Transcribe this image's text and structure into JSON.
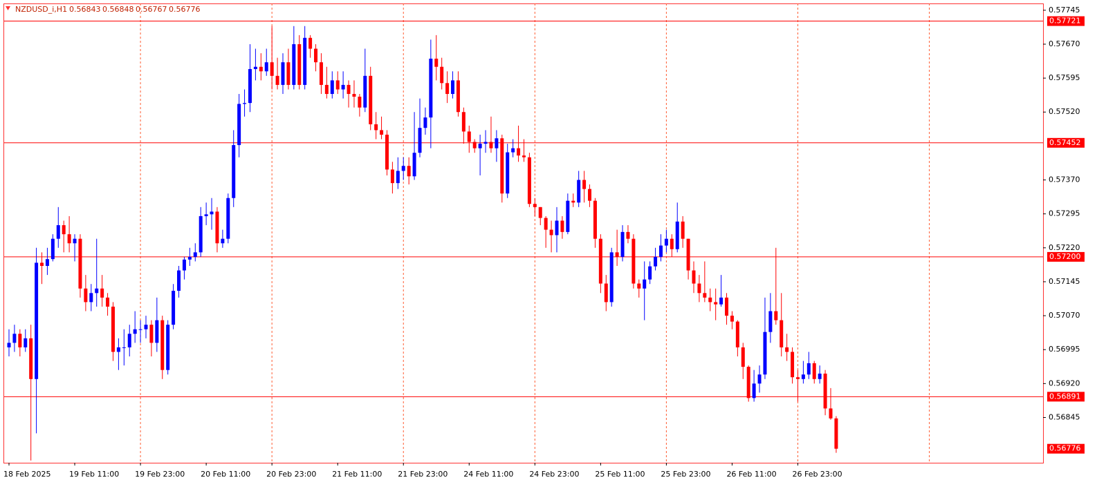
{
  "chart_data": {
    "type": "candlestick",
    "title": "NZDUSD_i,H1",
    "header_values": [
      0.56843,
      0.56848,
      0.56767,
      0.56776
    ],
    "up_color": "#0000ff",
    "down_color": "#ff0000",
    "level_color": "#ff0000",
    "grid": true,
    "ylim": [
      0.56745,
      0.5776
    ],
    "yticks": [
      0.57745,
      {
        "value": 0.5767,
        "label": "0.57670"
      },
      0.57595,
      {
        "value": 0.5752,
        "label": "0.57520"
      },
      {
        "value": 0.5737,
        "label": "0.57370"
      },
      0.57295,
      {
        "value": 0.5722,
        "label": "0.57220"
      },
      0.57145,
      {
        "value": 0.5707,
        "label": "0.57070"
      },
      0.56995,
      {
        "value": 0.5692,
        "label": "0.56920"
      },
      0.56845
    ],
    "levels": [
      0.57721,
      0.57452,
      {
        "value": 0.572,
        "label": "0.57200"
      },
      0.56891
    ],
    "categories": [
      "18 Feb 2025",
      null,
      null,
      null,
      null,
      null,
      null,
      null,
      null,
      null,
      null,
      null,
      "19 Feb 11:00",
      null,
      null,
      null,
      null,
      null,
      null,
      null,
      null,
      null,
      null,
      null,
      "19 Feb 23:00",
      null,
      null,
      null,
      null,
      null,
      null,
      null,
      null,
      null,
      null,
      null,
      "20 Feb 11:00",
      null,
      null,
      null,
      null,
      null,
      null,
      null,
      null,
      null,
      null,
      null,
      "20 Feb 23:00",
      null,
      null,
      null,
      null,
      null,
      null,
      null,
      null,
      null,
      null,
      null,
      "21 Feb 11:00",
      null,
      null,
      null,
      null,
      null,
      null,
      null,
      null,
      null,
      null,
      null,
      "21 Feb 23:00",
      null,
      null,
      null,
      null,
      null,
      null,
      null,
      null,
      null,
      null,
      null,
      "24 Feb 11:00",
      null,
      null,
      null,
      null,
      null,
      null,
      null,
      null,
      null,
      null,
      null,
      "24 Feb 23:00",
      null,
      null,
      null,
      null,
      null,
      null,
      null,
      null,
      null,
      null,
      null,
      "25 Feb 11:00",
      null,
      null,
      null,
      null,
      null,
      null,
      null,
      null,
      null,
      null,
      null,
      "25 Feb 23:00",
      null,
      null,
      null,
      null,
      null,
      null,
      null,
      null,
      null,
      null,
      null,
      "26 Feb 11:00",
      null,
      null,
      null,
      null,
      null,
      null,
      null,
      null,
      null,
      null,
      null,
      "26 Feb 23:00",
      null,
      null,
      null,
      null,
      null,
      null,
      null
    ],
    "ohlc": [
      [
        0.57,
        0.5704,
        0.5698,
        0.5701
      ],
      [
        0.5701,
        0.5705,
        0.5699,
        0.5703
      ],
      [
        0.5703,
        0.5704,
        0.5698,
        0.57
      ],
      [
        0.57,
        0.5704,
        0.5699,
        0.5702
      ],
      [
        0.5702,
        0.5705,
        0.5675,
        0.5693
      ],
      [
        0.5693,
        0.5722,
        0.5681,
        0.57187
      ],
      [
        0.57187,
        0.5721,
        0.5714,
        0.5718
      ],
      [
        0.5718,
        0.5722,
        0.5716,
        0.57195
      ],
      [
        0.57195,
        0.5725,
        0.5719,
        0.5724
      ],
      [
        0.5724,
        0.5731,
        0.5722,
        0.5727
      ],
      [
        0.5727,
        0.5728,
        0.5721,
        0.5725
      ],
      [
        0.5725,
        0.5729,
        0.5721,
        0.5723
      ],
      [
        0.5723,
        0.5725,
        0.5719,
        0.5724
      ],
      [
        0.5724,
        0.5725,
        0.5711,
        0.5713
      ],
      [
        0.5713,
        0.5716,
        0.5708,
        0.571
      ],
      [
        0.571,
        0.5714,
        0.5708,
        0.5712
      ],
      [
        0.5712,
        0.5724,
        0.5709,
        0.5713
      ],
      [
        0.5713,
        0.5716,
        0.5709,
        0.5711
      ],
      [
        0.5711,
        0.5712,
        0.5707,
        0.5709
      ],
      [
        0.5709,
        0.571,
        0.5697,
        0.5699
      ],
      [
        0.5699,
        0.5702,
        0.5695,
        0.57
      ],
      [
        0.57,
        0.5704,
        0.5696,
        0.57
      ],
      [
        0.57,
        0.5705,
        0.5698,
        0.5703
      ],
      [
        0.5703,
        0.5708,
        0.5701,
        0.5704
      ],
      [
        0.5704,
        0.5706,
        0.5701,
        0.5704
      ],
      [
        0.5704,
        0.5707,
        0.5702,
        0.5705
      ],
      [
        0.5705,
        0.5706,
        0.5698,
        0.5701
      ],
      [
        0.5701,
        0.5711,
        0.5699,
        0.5706
      ],
      [
        0.5706,
        0.5707,
        0.5693,
        0.5695
      ],
      [
        0.5695,
        0.5706,
        0.5694,
        0.5705
      ],
      [
        0.5705,
        0.5714,
        0.5704,
        0.57125
      ],
      [
        0.57125,
        0.5718,
        0.5711,
        0.5717
      ],
      [
        0.5717,
        0.572,
        0.5715,
        0.57194
      ],
      [
        0.57194,
        0.5722,
        0.5718,
        0.572
      ],
      [
        0.572,
        0.5723,
        0.5719,
        0.5721
      ],
      [
        0.5721,
        0.5731,
        0.572,
        0.5729
      ],
      [
        0.5729,
        0.5732,
        0.5727,
        0.57294
      ],
      [
        0.57294,
        0.5733,
        0.5726,
        0.573
      ],
      [
        0.573,
        0.5731,
        0.5721,
        0.5723
      ],
      [
        0.5723,
        0.5726,
        0.5722,
        0.5724
      ],
      [
        0.5724,
        0.5734,
        0.5723,
        0.5733
      ],
      [
        0.5733,
        0.5748,
        0.5731,
        0.57447
      ],
      [
        0.57447,
        0.5756,
        0.5742,
        0.57538
      ],
      [
        0.57538,
        0.5757,
        0.5751,
        0.5754
      ],
      [
        0.5754,
        0.5767,
        0.5752,
        0.57615
      ],
      [
        0.57615,
        0.5766,
        0.5759,
        0.5762
      ],
      [
        0.5762,
        0.5765,
        0.5759,
        0.5761
      ],
      [
        0.5761,
        0.5766,
        0.576,
        0.5763
      ],
      [
        0.5763,
        0.5771,
        0.5757,
        0.576
      ],
      [
        0.576,
        0.5764,
        0.5757,
        0.5758
      ],
      [
        0.5758,
        0.5765,
        0.5756,
        0.5763
      ],
      [
        0.5763,
        0.5766,
        0.5757,
        0.5758
      ],
      [
        0.5758,
        0.5771,
        0.5757,
        0.5767
      ],
      [
        0.5767,
        0.5769,
        0.5757,
        0.5758
      ],
      [
        0.5758,
        0.5771,
        0.5757,
        0.57684
      ],
      [
        0.57684,
        0.5769,
        0.5764,
        0.5766
      ],
      [
        0.5766,
        0.5767,
        0.5761,
        0.5763
      ],
      [
        0.5763,
        0.5765,
        0.5756,
        0.5758
      ],
      [
        0.5758,
        0.5762,
        0.5755,
        0.5756
      ],
      [
        0.5756,
        0.5761,
        0.5755,
        0.5759
      ],
      [
        0.5759,
        0.5761,
        0.5756,
        0.5757
      ],
      [
        0.5757,
        0.5761,
        0.5755,
        0.5758
      ],
      [
        0.5758,
        0.5759,
        0.5753,
        0.5756
      ],
      [
        0.5756,
        0.5759,
        0.5753,
        0.57554
      ],
      [
        0.57554,
        0.5756,
        0.5751,
        0.5753
      ],
      [
        0.5753,
        0.5766,
        0.5752,
        0.576
      ],
      [
        0.576,
        0.5762,
        0.5748,
        0.57493
      ],
      [
        0.57493,
        0.5752,
        0.5746,
        0.5748
      ],
      [
        0.5748,
        0.5751,
        0.5746,
        0.5747
      ],
      [
        0.5747,
        0.5748,
        0.5738,
        0.57393
      ],
      [
        0.57393,
        0.5741,
        0.5734,
        0.57363
      ],
      [
        0.57363,
        0.5742,
        0.5735,
        0.5739
      ],
      [
        0.5739,
        0.5742,
        0.5737,
        0.57401
      ],
      [
        0.57401,
        0.5742,
        0.5736,
        0.57378
      ],
      [
        0.57378,
        0.5752,
        0.5737,
        0.5743
      ],
      [
        0.5743,
        0.5755,
        0.5742,
        0.57485
      ],
      [
        0.57485,
        0.5753,
        0.5747,
        0.57508
      ],
      [
        0.57508,
        0.5768,
        0.5744,
        0.57638
      ],
      [
        0.57638,
        0.5769,
        0.5759,
        0.5762
      ],
      [
        0.5762,
        0.5764,
        0.5757,
        0.57584
      ],
      [
        0.57584,
        0.5761,
        0.5754,
        0.5756
      ],
      [
        0.5756,
        0.5761,
        0.5755,
        0.5759
      ],
      [
        0.5759,
        0.5761,
        0.5751,
        0.5752
      ],
      [
        0.5752,
        0.5753,
        0.5745,
        0.57477
      ],
      [
        0.57477,
        0.5749,
        0.5743,
        0.57454
      ],
      [
        0.57454,
        0.5746,
        0.5743,
        0.5744
      ],
      [
        0.5744,
        0.5747,
        0.5738,
        0.5745
      ],
      [
        0.5745,
        0.5748,
        0.5743,
        0.57454
      ],
      [
        0.57454,
        0.5751,
        0.5743,
        0.5744
      ],
      [
        0.5744,
        0.5748,
        0.5741,
        0.57462
      ],
      [
        0.57462,
        0.5747,
        0.5732,
        0.5734
      ],
      [
        0.5734,
        0.5745,
        0.5733,
        0.57431
      ],
      [
        0.57431,
        0.5746,
        0.5742,
        0.5744
      ],
      [
        0.5744,
        0.5749,
        0.5741,
        0.57424
      ],
      [
        0.57424,
        0.5746,
        0.5741,
        0.5742
      ],
      [
        0.5742,
        0.5743,
        0.5731,
        0.57317
      ],
      [
        0.57317,
        0.5733,
        0.5729,
        0.5731
      ],
      [
        0.5731,
        0.5731,
        0.5727,
        0.57286
      ],
      [
        0.57286,
        0.5729,
        0.5722,
        0.5726
      ],
      [
        0.5726,
        0.5728,
        0.5721,
        0.57248
      ],
      [
        0.57248,
        0.5731,
        0.5721,
        0.5728
      ],
      [
        0.5728,
        0.5729,
        0.5724,
        0.57255
      ],
      [
        0.57255,
        0.5734,
        0.5725,
        0.57324
      ],
      [
        0.57324,
        0.5734,
        0.5731,
        0.5732
      ],
      [
        0.5732,
        0.5739,
        0.5731,
        0.5737
      ],
      [
        0.5737,
        0.5739,
        0.5732,
        0.5735
      ],
      [
        0.5735,
        0.5736,
        0.5731,
        0.57324
      ],
      [
        0.57324,
        0.5733,
        0.5722,
        0.5724
      ],
      [
        0.5724,
        0.5725,
        0.5712,
        0.57141
      ],
      [
        0.57141,
        0.5716,
        0.5708,
        0.571
      ],
      [
        0.571,
        0.5722,
        0.5709,
        0.5721
      ],
      [
        0.5721,
        0.5726,
        0.5718,
        0.572
      ],
      [
        0.572,
        0.5727,
        0.5719,
        0.57255
      ],
      [
        0.57255,
        0.5727,
        0.5723,
        0.5724
      ],
      [
        0.5724,
        0.5725,
        0.5713,
        0.57141
      ],
      [
        0.57141,
        0.5715,
        0.5711,
        0.5713
      ],
      [
        0.5713,
        0.5719,
        0.5706,
        0.5715
      ],
      [
        0.5715,
        0.5719,
        0.5714,
        0.57179
      ],
      [
        0.57179,
        0.5722,
        0.5717,
        0.572
      ],
      [
        0.572,
        0.5725,
        0.5719,
        0.57225
      ],
      [
        0.57225,
        0.5726,
        0.5721,
        0.5724
      ],
      [
        0.5724,
        0.5725,
        0.572,
        0.57217
      ],
      [
        0.57217,
        0.5732,
        0.5721,
        0.57278
      ],
      [
        0.57278,
        0.5729,
        0.5722,
        0.5724
      ],
      [
        0.5724,
        0.5724,
        0.5715,
        0.5717
      ],
      [
        0.5717,
        0.5719,
        0.5712,
        0.57141
      ],
      [
        0.57141,
        0.5716,
        0.571,
        0.5712
      ],
      [
        0.5712,
        0.5719,
        0.571,
        0.5711
      ],
      [
        0.5711,
        0.5713,
        0.5708,
        0.571
      ],
      [
        0.571,
        0.5713,
        0.5706,
        0.57095
      ],
      [
        0.57095,
        0.5716,
        0.5709,
        0.5711
      ],
      [
        0.5711,
        0.5712,
        0.5705,
        0.5707
      ],
      [
        0.5707,
        0.5708,
        0.5704,
        0.57057
      ],
      [
        0.57057,
        0.5706,
        0.5698,
        0.57
      ],
      [
        0.57,
        0.5701,
        0.5693,
        0.56957
      ],
      [
        0.56957,
        0.5696,
        0.5688,
        0.56888
      ],
      [
        0.56888,
        0.5695,
        0.5688,
        0.5692
      ],
      [
        0.5692,
        0.5696,
        0.569,
        0.5694
      ],
      [
        0.5694,
        0.5711,
        0.5693,
        0.57034
      ],
      [
        0.57034,
        0.5712,
        0.5701,
        0.5708
      ],
      [
        0.5708,
        0.5722,
        0.5705,
        0.5706
      ],
      [
        0.5706,
        0.5712,
        0.5698,
        0.57
      ],
      [
        0.57,
        0.5703,
        0.5697,
        0.5699
      ],
      [
        0.5699,
        0.57,
        0.5692,
        0.56934
      ],
      [
        0.56934,
        0.5695,
        0.5688,
        0.5693
      ],
      [
        0.5693,
        0.5697,
        0.5692,
        0.5694
      ],
      [
        0.5694,
        0.5699,
        0.5693,
        0.56965
      ],
      [
        0.56965,
        0.5697,
        0.5692,
        0.5693
      ],
      [
        0.5693,
        0.5696,
        0.5692,
        0.56942
      ],
      [
        0.56942,
        0.5695,
        0.5685,
        0.56865
      ],
      [
        0.56865,
        0.5691,
        0.5684,
        0.56843
      ],
      [
        0.56843,
        0.56848,
        0.56767,
        0.56776
      ]
    ]
  }
}
